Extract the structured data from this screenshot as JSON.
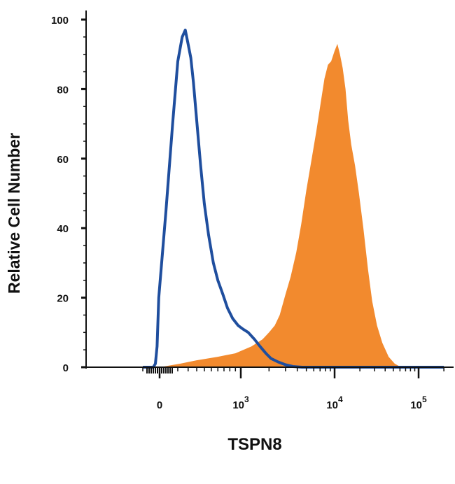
{
  "chart_data": {
    "type": "area",
    "ylabel": "Relative Cell Number",
    "xlabel": "TSPN8",
    "xscale": "biexponential",
    "ylim": [
      0,
      100
    ],
    "y_ticks": [
      0,
      20,
      40,
      60,
      80,
      100
    ],
    "x_ticks": [
      {
        "value": 0,
        "label": "0"
      },
      {
        "value": 1000,
        "base": "10",
        "exp": "3"
      },
      {
        "value": 10000,
        "base": "10",
        "exp": "4"
      },
      {
        "value": 100000,
        "base": "10",
        "exp": "5"
      }
    ],
    "grid": false,
    "series": [
      {
        "style": "filled",
        "color": "#F28A2E",
        "points": [
          [
            -400,
            0
          ],
          [
            0,
            0
          ],
          [
            120,
            1
          ],
          [
            300,
            2
          ],
          [
            600,
            3
          ],
          [
            900,
            4
          ],
          [
            1300,
            6
          ],
          [
            1700,
            8
          ],
          [
            2000,
            10
          ],
          [
            2300,
            12
          ],
          [
            2600,
            15
          ],
          [
            3000,
            21
          ],
          [
            3400,
            26
          ],
          [
            3900,
            33
          ],
          [
            4400,
            41
          ],
          [
            5000,
            51
          ],
          [
            5700,
            60
          ],
          [
            6400,
            68
          ],
          [
            7100,
            76
          ],
          [
            7800,
            83
          ],
          [
            8500,
            87
          ],
          [
            9200,
            88
          ],
          [
            10000,
            91
          ],
          [
            10800,
            93
          ],
          [
            11600,
            90
          ],
          [
            12500,
            86
          ],
          [
            13500,
            80
          ],
          [
            14500,
            71
          ],
          [
            15800,
            64
          ],
          [
            17500,
            58
          ],
          [
            19500,
            50
          ],
          [
            22000,
            40
          ],
          [
            25000,
            28
          ],
          [
            28000,
            19
          ],
          [
            32000,
            12
          ],
          [
            37000,
            7
          ],
          [
            44000,
            3
          ],
          [
            52000,
            1
          ],
          [
            62000,
            0
          ],
          [
            100000,
            0
          ],
          [
            200000,
            0
          ]
        ]
      },
      {
        "style": "line",
        "color": "#1F4E9E",
        "points": [
          [
            -400,
            0
          ],
          [
            -150,
            0
          ],
          [
            -100,
            1
          ],
          [
            -60,
            6
          ],
          [
            -20,
            20
          ],
          [
            20,
            45
          ],
          [
            60,
            70
          ],
          [
            100,
            88
          ],
          [
            140,
            95
          ],
          [
            170,
            97
          ],
          [
            200,
            93
          ],
          [
            230,
            89
          ],
          [
            260,
            82
          ],
          [
            300,
            71
          ],
          [
            350,
            58
          ],
          [
            400,
            47
          ],
          [
            460,
            38
          ],
          [
            530,
            30
          ],
          [
            600,
            25
          ],
          [
            680,
            21
          ],
          [
            760,
            17
          ],
          [
            850,
            14
          ],
          [
            950,
            12
          ],
          [
            1050,
            11
          ],
          [
            1200,
            10
          ],
          [
            1400,
            8
          ],
          [
            1600,
            6
          ],
          [
            1850,
            4
          ],
          [
            2100,
            2.5
          ],
          [
            2500,
            1.5
          ],
          [
            3000,
            0.7
          ],
          [
            3600,
            0.2
          ],
          [
            4500,
            0
          ],
          [
            200000,
            0
          ]
        ]
      }
    ]
  }
}
